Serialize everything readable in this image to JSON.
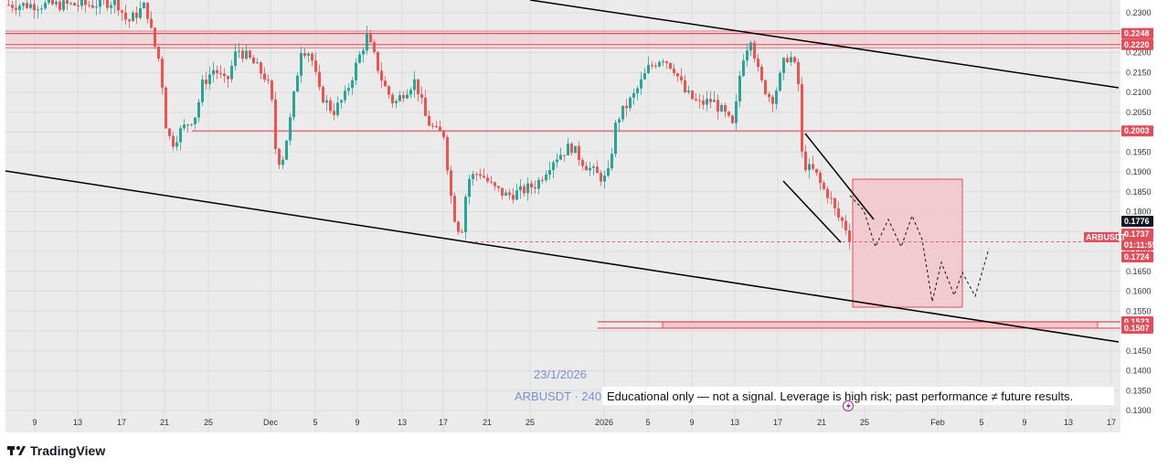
{
  "chart_data": {
    "type": "candlestick",
    "symbol": "ARBUSDT",
    "y_ticks": [
      "0.2300",
      "0.2250",
      "0.2200",
      "0.2150",
      "0.2100",
      "0.2050",
      "0.2000",
      "0.1950",
      "0.1900",
      "0.1850",
      "0.1800",
      "0.1750",
      "0.1700",
      "0.1650",
      "0.1600",
      "0.1550",
      "0.1500",
      "0.1450",
      "0.1400",
      "0.1350",
      "0.1300"
    ],
    "x_ticks": [
      "9",
      "13",
      "17",
      "21",
      "25",
      "Dec",
      "5",
      "9",
      "13",
      "17",
      "21",
      "25",
      "2026",
      "5",
      "9",
      "13",
      "17",
      "21",
      "25",
      "Feb",
      "5",
      "9",
      "13",
      "17"
    ],
    "price_range": [
      0.1295,
      0.2325
    ],
    "levels": [
      {
        "name": "resistance-top",
        "price": 0.2248,
        "label": "0.2248"
      },
      {
        "name": "resistance-bottom",
        "price": 0.222,
        "label": "0.2220"
      },
      {
        "name": "mid-level",
        "price": 0.2003,
        "label": "0.2003"
      },
      {
        "name": "support-top",
        "price": 0.1523,
        "label": "0.1523"
      },
      {
        "name": "support-bottom",
        "price": 0.1507,
        "label": "0.1507"
      }
    ],
    "price_badges": [
      {
        "name": "price-1776",
        "value": "0.1776",
        "color": "#131722"
      },
      {
        "name": "price-1737",
        "value": "0.1737",
        "color": "#e04e5a"
      },
      {
        "name": "countdown",
        "value": "01:11:55",
        "color": "#e04e5a"
      },
      {
        "name": "price-1724",
        "value": "0.1724",
        "color": "#e04e5a"
      }
    ],
    "ticker_label": "ARBUSDT",
    "colors": {
      "up": "#26a69a",
      "down": "#ef5350",
      "level": "#e04e5a",
      "zone": "#f2c6cb",
      "trend": "#000000",
      "bg": "#ebebeb"
    }
  },
  "watermark": {
    "date": "23/1/2026",
    "symbol": "ARBUSDT · 240"
  },
  "disclaimer": "Educational only — not a signal. Leverage is high risk; past performance ≠ future results.",
  "branding": {
    "logo": "TradingView"
  }
}
